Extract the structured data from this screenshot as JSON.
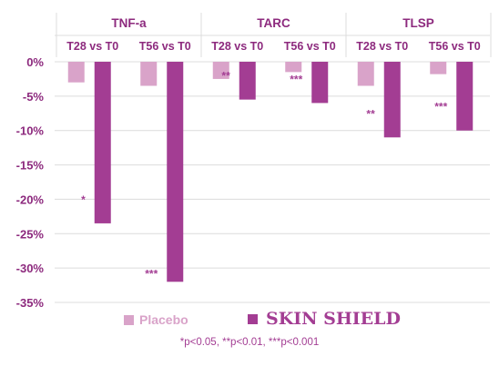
{
  "chart_data": {
    "type": "bar",
    "groups": [
      {
        "name": "TNF-a",
        "comparisons": [
          "T28 vs T0",
          "T56 vs T0"
        ]
      },
      {
        "name": "TARC",
        "comparisons": [
          "T28 vs T0",
          "T56 vs T0"
        ]
      },
      {
        "name": "TLSP",
        "comparisons": [
          "T28 vs T0",
          "T56 vs T0"
        ]
      }
    ],
    "categories": [
      "TNF-a T28 vs T0",
      "TNF-a T56 vs T0",
      "TARC T28 vs T0",
      "TARC T56 vs T0",
      "TLSP T28 vs T0",
      "TLSP T56 vs T0"
    ],
    "series": [
      {
        "name": "Placebo",
        "color": "#d9a3c9",
        "values": [
          -3.0,
          -3.5,
          -2.5,
          -1.5,
          -3.5,
          -1.8
        ]
      },
      {
        "name": "SKIN SHIELD",
        "color": "#a33d93",
        "values": [
          -23.5,
          -32.0,
          -5.5,
          -6.0,
          -11.0,
          -10.0
        ]
      }
    ],
    "significance": [
      "*",
      "***",
      "**",
      "***",
      "**",
      "***"
    ],
    "y_ticks": [
      0,
      -5,
      -10,
      -15,
      -20,
      -25,
      -30,
      -35
    ],
    "y_tick_labels": [
      "0%",
      "-5%",
      "-10%",
      "-15%",
      "-20%",
      "-25%",
      "-30%",
      "-35%"
    ],
    "ylim": [
      -35,
      0
    ],
    "grid": true,
    "legend_position": "bottom",
    "footnote": "*p<0.05, **p<0.01, ***p<0.001"
  },
  "colors": {
    "tick_label": "#8d2a7e",
    "grid": "#dcdcdc",
    "significance": "#a33d93"
  }
}
